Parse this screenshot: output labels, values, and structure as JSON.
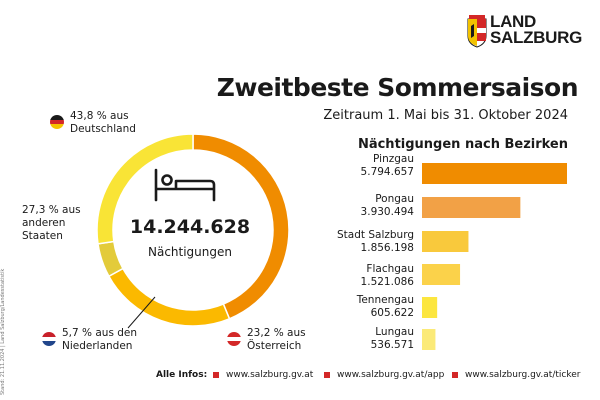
{
  "header": {
    "logo_line1": "LAND",
    "logo_line2": "SALZBURG",
    "title": "Zweitbeste Sommersaison",
    "subtitle": "Zeitraum 1. Mai bis 31. Oktober 2024",
    "side_note": "Stand: 21.11.2024 | Land Salzburg/Landesstatistik"
  },
  "colors": {
    "deutschland": "#F08C00",
    "oesterreich": "#FBB900",
    "niederlande": "#E3CB3A",
    "andere": "#F9E436",
    "accent_red": "#D32828"
  },
  "chart_data": [
    {
      "type": "pie",
      "center_value": "14.244.628",
      "center_label": "Nächtigungen",
      "slices": [
        {
          "name": "Deutschland",
          "value": 43.8,
          "label": "43,8 % aus Deutschland",
          "color": "#F08C00"
        },
        {
          "name": "Österreich",
          "value": 23.2,
          "label": "23,2 % aus Österreich",
          "color": "#FBB900"
        },
        {
          "name": "Niederlande",
          "value": 5.7,
          "label": "5,7 % aus den Niederlanden",
          "color": "#E3CB3A"
        },
        {
          "name": "anderen Staaten",
          "value": 27.3,
          "label": "27,3 % aus anderen Staaten",
          "color": "#F9E436"
        }
      ]
    },
    {
      "type": "bar",
      "title": "Nächtigungen nach Bezirken",
      "categories": [
        "Pinzgau",
        "Pongau",
        "Stadt Salzburg",
        "Flachgau",
        "Tennengau",
        "Lungau"
      ],
      "value_labels": [
        "5.794.657",
        "3.930.494",
        "1.856.198",
        "1.521.086",
        "605.622",
        "536.571"
      ],
      "values": [
        5794657,
        3930494,
        1856198,
        1521086,
        605622,
        536571
      ],
      "colors": [
        "#F08C00",
        "#F2A146",
        "#F9C93C",
        "#FBD24A",
        "#FCE63F",
        "#FBEA78"
      ]
    }
  ],
  "legend": {
    "deutschland_l1": "43,8 % aus",
    "deutschland_l2": "Deutschland",
    "andere_l1": "27,3 % aus",
    "andere_l2": "anderen",
    "andere_l3": "Staaten",
    "niederlande_l1": "5,7 % aus den",
    "niederlande_l2": "Niederlanden",
    "oesterreich_l1": "23,2 % aus",
    "oesterreich_l2": "Österreich"
  },
  "footer": {
    "label": "Alle Infos:",
    "links": [
      "www.salzburg.gv.at",
      "www.salzburg.gv.at/app",
      "www.salzburg.gv.at/ticker"
    ]
  }
}
